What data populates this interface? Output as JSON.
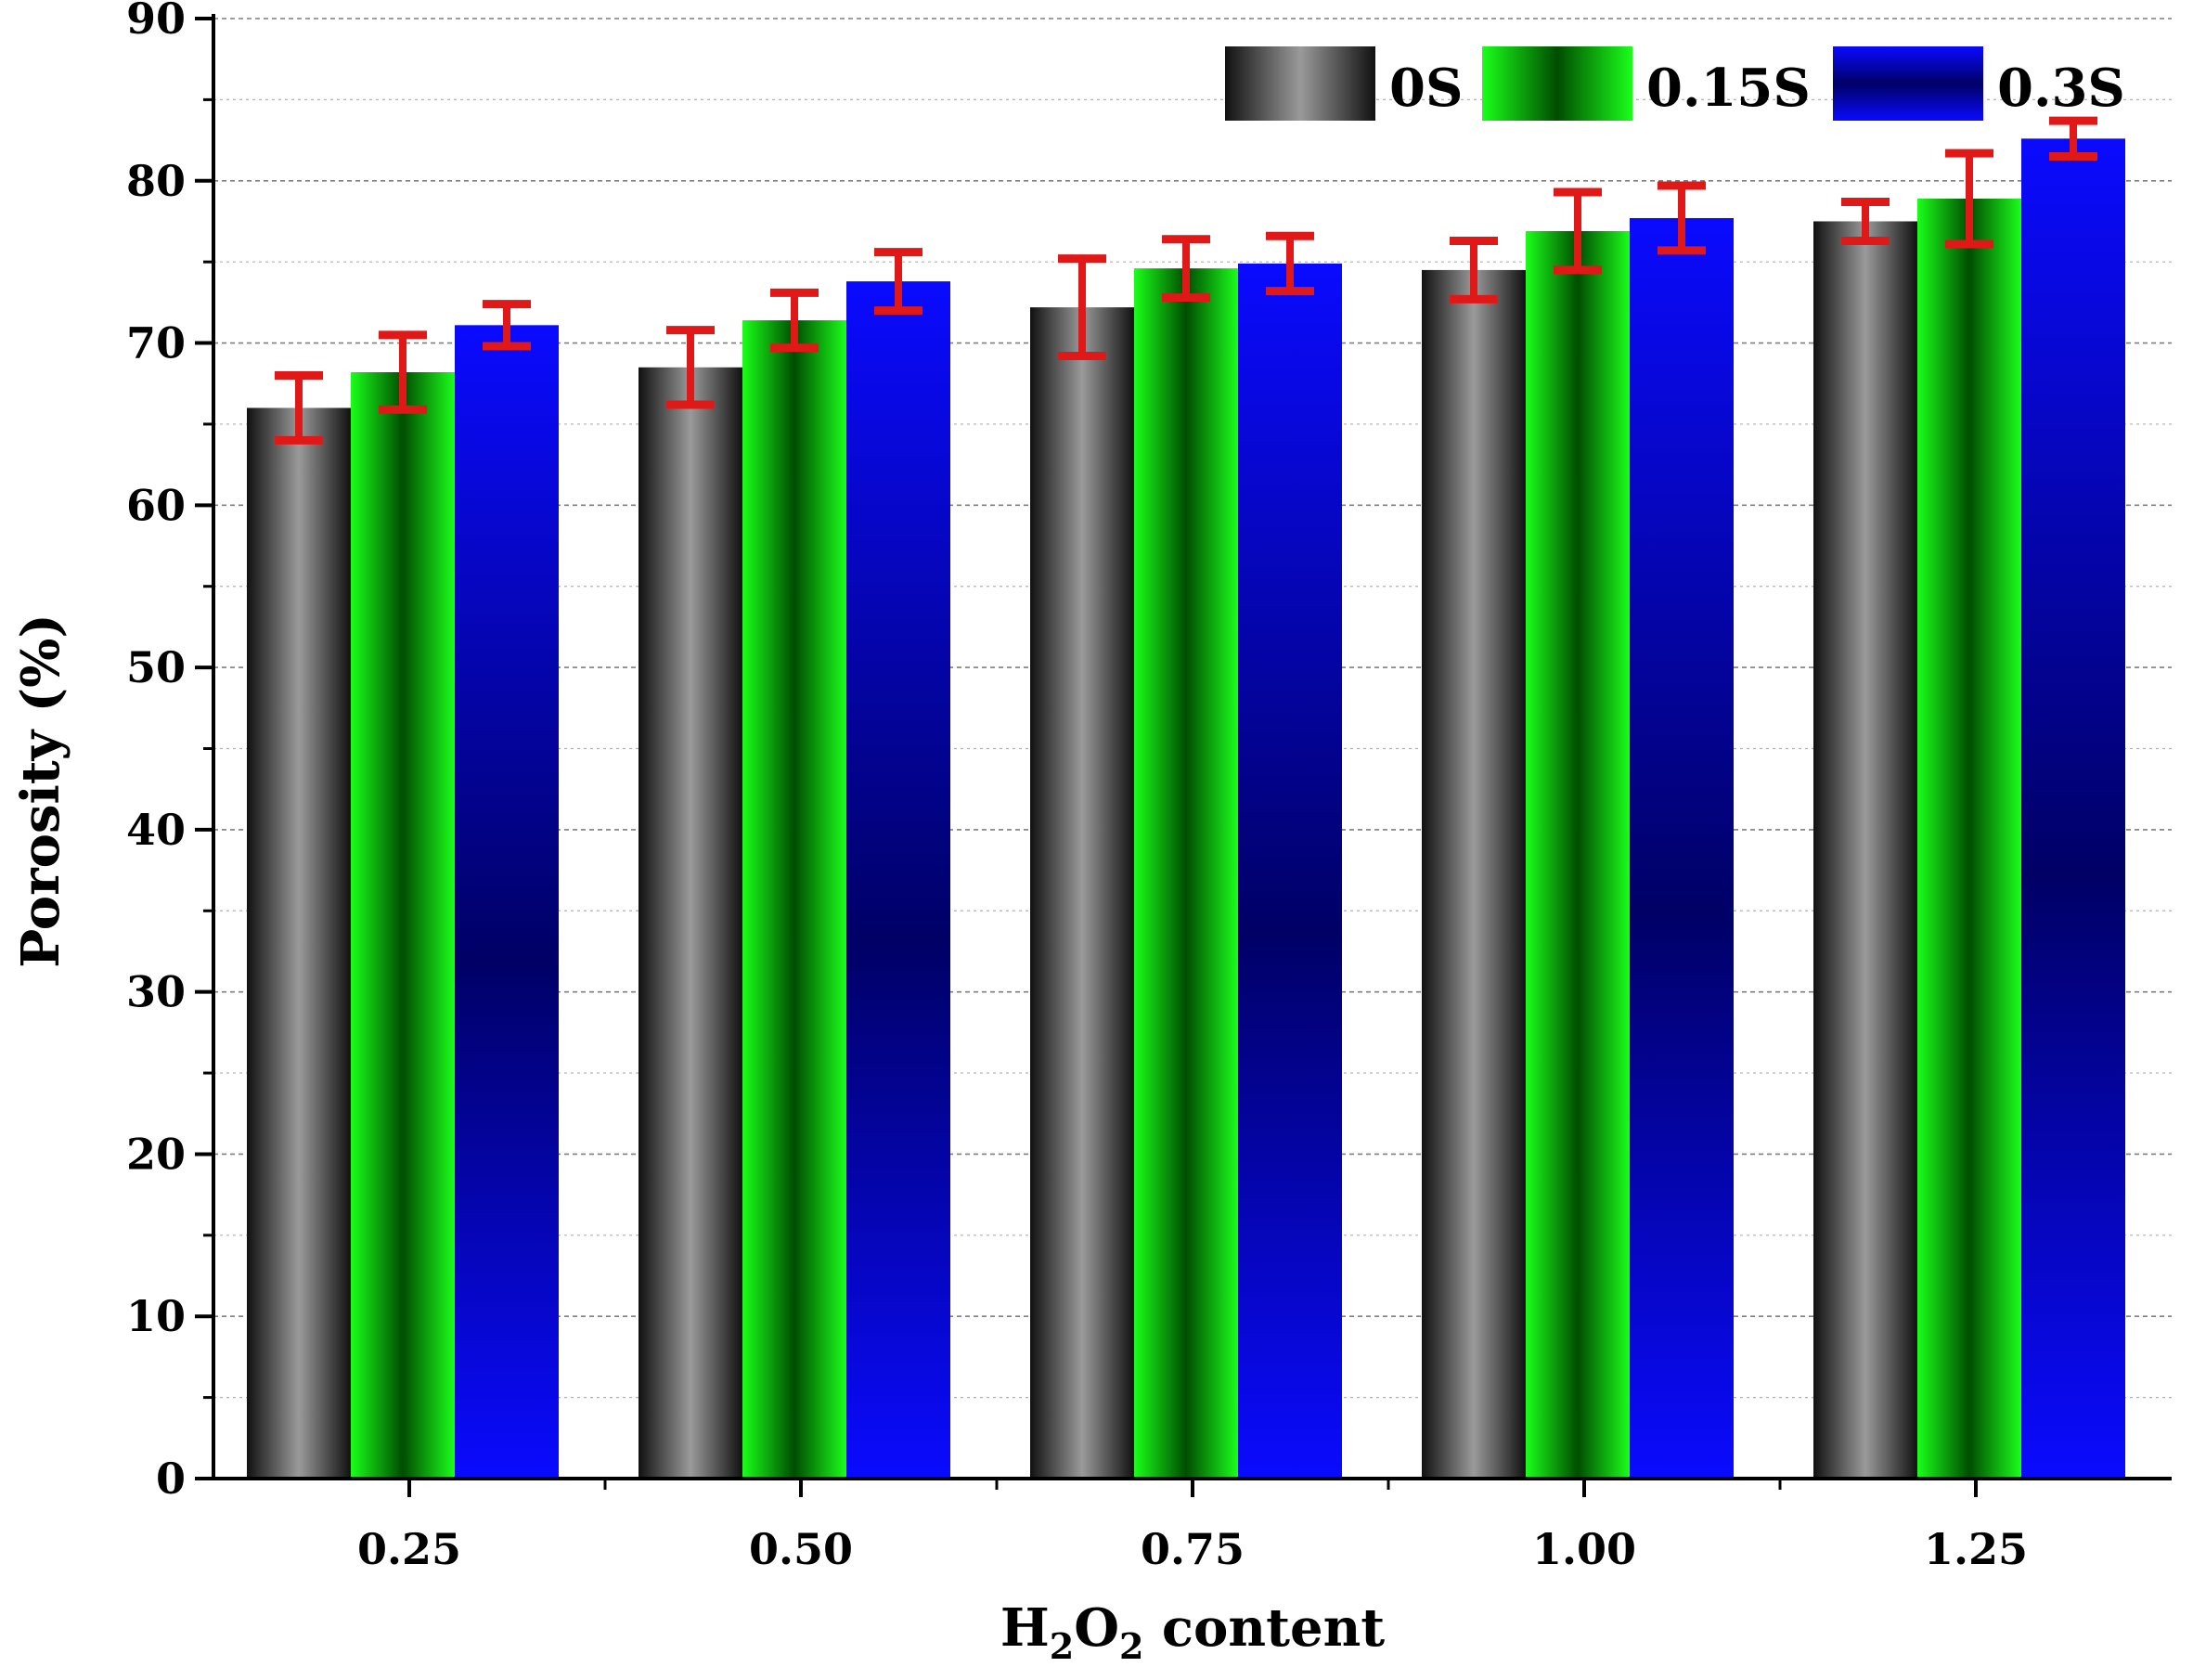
{
  "chart_data": {
    "type": "bar",
    "title": "",
    "xlabel": {
      "main": "H",
      "sub1": "2",
      "mid": "O",
      "sub2": "2",
      "tail": " content"
    },
    "ylabel": "Porosity (%)",
    "categories": [
      "0.25",
      "0.50",
      "0.75",
      "1.00",
      "1.25"
    ],
    "ylim": [
      0,
      90
    ],
    "yticks": [
      "0",
      "10",
      "20",
      "30",
      "40",
      "50",
      "60",
      "70",
      "80",
      "90"
    ],
    "grid": true,
    "legend_position": "top-right",
    "series": [
      {
        "name": "0S",
        "values": [
          66.0,
          68.5,
          72.2,
          74.5,
          77.5
        ],
        "errors": [
          2.0,
          2.3,
          3.0,
          1.8,
          1.2
        ]
      },
      {
        "name": "0.15S",
        "values": [
          68.2,
          71.4,
          74.6,
          76.9,
          78.9
        ],
        "errors": [
          2.3,
          1.7,
          1.8,
          2.4,
          2.8
        ]
      },
      {
        "name": "0.3S",
        "values": [
          71.1,
          73.8,
          74.9,
          77.7,
          82.6
        ],
        "errors": [
          1.3,
          1.8,
          1.7,
          2.0,
          1.1
        ]
      }
    ],
    "colors": {
      "0S": {
        "dark": "#111111",
        "light": "#9a9a9a"
      },
      "0.15S": {
        "dark": "#004d00",
        "light": "#1aff1a"
      },
      "0.3S": {
        "dark": "#000066",
        "light": "#0a0aff"
      },
      "error_bar": "#e01818",
      "grid": "#7f7f7f"
    }
  }
}
